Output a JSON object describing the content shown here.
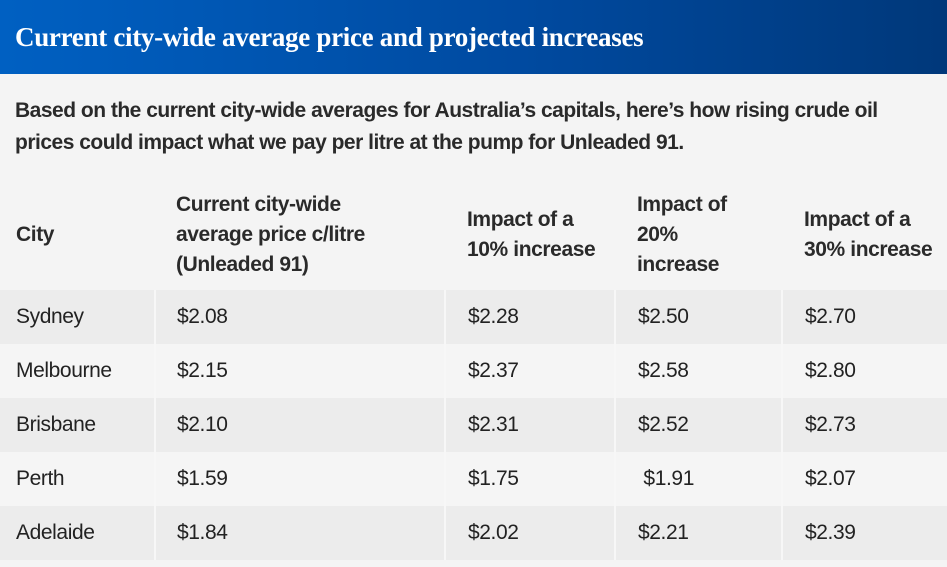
{
  "title": "Current city-wide average price and projected increases",
  "intro": "Based on the current city-wide averages for Australia’s capitals, here’s how rising crude oil prices could impact what we pay per litre at the pump for Unleaded 91.",
  "table": {
    "headers": [
      "City",
      "Current city-wide average price c/litre (Unleaded 91)",
      "Impact of a 10% increase",
      "Impact of 20% increase",
      "Impact of a 30% increase"
    ],
    "rows": [
      [
        "Sydney",
        "$2.08",
        "$2.28",
        "$2.50",
        "$2.70"
      ],
      [
        "Melbourne",
        "$2.15",
        "$2.37",
        "$2.58",
        "$2.80"
      ],
      [
        "Brisbane",
        "$2.10",
        "$2.31",
        "$2.52",
        "$2.73"
      ],
      [
        "Perth",
        "$1.59",
        "$1.75",
        " $1.91",
        "$2.07"
      ],
      [
        "Adelaide",
        "$1.84",
        "$2.02",
        "$2.21",
        "$2.39"
      ]
    ]
  },
  "colors": {
    "banner_start": "#0060c2",
    "banner_end": "#00387a",
    "background": "#f4f4f4",
    "stripe": "#ececec"
  }
}
